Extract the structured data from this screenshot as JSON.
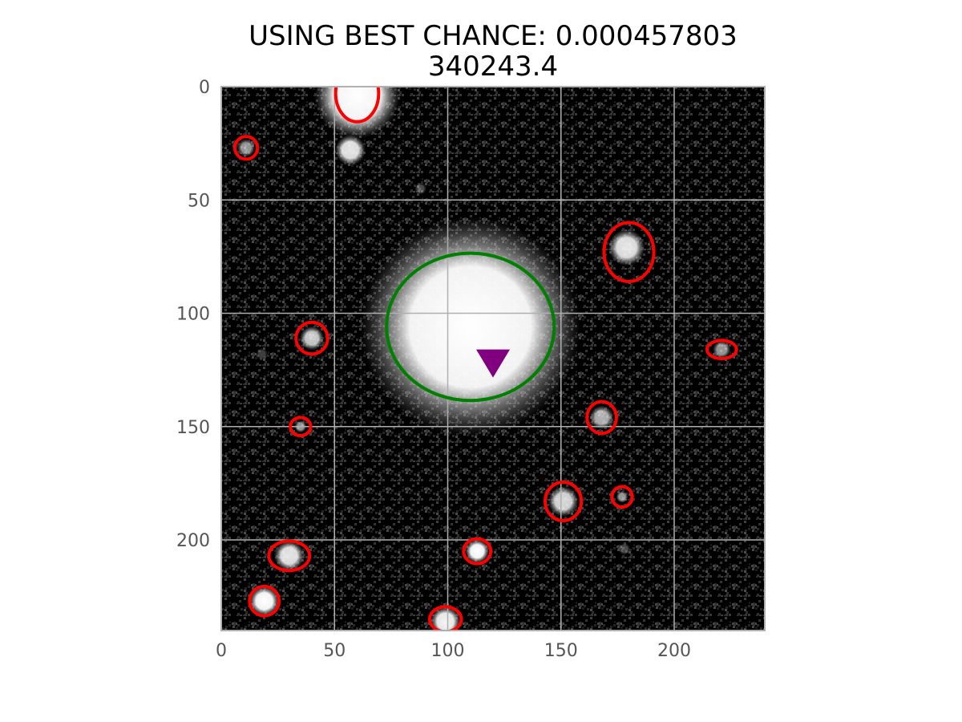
{
  "chart_data": {
    "type": "image",
    "title": "USING BEST CHANCE: 0.000457803",
    "subtitle": "340243.4",
    "xlabel": "",
    "ylabel": "",
    "xlim": [
      0,
      240
    ],
    "ylim": [
      240,
      0
    ],
    "x_ticks": [
      "0",
      "50",
      "100",
      "150",
      "200"
    ],
    "y_ticks": [
      "0",
      "50",
      "100",
      "150",
      "200"
    ],
    "x_tick_values": [
      0,
      50,
      100,
      150,
      200
    ],
    "y_tick_values": [
      0,
      50,
      100,
      150,
      200
    ],
    "grid": true,
    "background_color": "#000000",
    "grid_color": "#b0b0b0",
    "host_ellipse": {
      "x": 110,
      "y": 106,
      "width": 74,
      "height": 65,
      "color": "#008000"
    },
    "marker": {
      "x": 120,
      "y": 122,
      "shape": "triangle-down",
      "color": "#800080"
    },
    "source_ellipses": {
      "color": "#ff0000",
      "items": [
        {
          "x": 60,
          "y": 3,
          "width": 19,
          "height": 25
        },
        {
          "x": 11,
          "y": 27,
          "width": 10,
          "height": 10
        },
        {
          "x": 180,
          "y": 73,
          "width": 22,
          "height": 26
        },
        {
          "x": 40,
          "y": 111,
          "width": 14,
          "height": 14
        },
        {
          "x": 221,
          "y": 116,
          "width": 13,
          "height": 8
        },
        {
          "x": 168,
          "y": 146,
          "width": 13,
          "height": 14
        },
        {
          "x": 35,
          "y": 150,
          "width": 9,
          "height": 8
        },
        {
          "x": 151,
          "y": 183,
          "width": 16,
          "height": 17
        },
        {
          "x": 177,
          "y": 181,
          "width": 9,
          "height": 9
        },
        {
          "x": 30,
          "y": 207,
          "width": 18,
          "height": 13
        },
        {
          "x": 113,
          "y": 205,
          "width": 12,
          "height": 11
        },
        {
          "x": 19,
          "y": 227,
          "width": 13,
          "height": 13
        },
        {
          "x": 99,
          "y": 235,
          "width": 14,
          "height": 11
        }
      ]
    },
    "bright_sources": [
      {
        "x": 110,
        "y": 106,
        "radius": 36,
        "brightness": 1.0
      },
      {
        "x": 60,
        "y": 4,
        "radius": 14,
        "brightness": 1.0
      },
      {
        "x": 57,
        "y": 28,
        "radius": 5,
        "brightness": 0.9
      },
      {
        "x": 11,
        "y": 27,
        "radius": 3,
        "brightness": 0.6
      },
      {
        "x": 179,
        "y": 71,
        "radius": 6,
        "brightness": 0.9
      },
      {
        "x": 40,
        "y": 111,
        "radius": 4,
        "brightness": 0.8
      },
      {
        "x": 221,
        "y": 116,
        "radius": 3,
        "brightness": 0.6
      },
      {
        "x": 168,
        "y": 146,
        "radius": 4,
        "brightness": 0.7
      },
      {
        "x": 35,
        "y": 150,
        "radius": 2,
        "brightness": 0.6
      },
      {
        "x": 151,
        "y": 183,
        "radius": 5,
        "brightness": 0.85
      },
      {
        "x": 177,
        "y": 181,
        "radius": 2,
        "brightness": 0.6
      },
      {
        "x": 30,
        "y": 207,
        "radius": 5,
        "brightness": 0.9
      },
      {
        "x": 113,
        "y": 205,
        "radius": 4,
        "brightness": 1.0
      },
      {
        "x": 19,
        "y": 227,
        "radius": 5,
        "brightness": 1.0
      },
      {
        "x": 99,
        "y": 236,
        "radius": 5,
        "brightness": 0.95
      },
      {
        "x": 88,
        "y": 45,
        "radius": 2,
        "brightness": 0.3
      },
      {
        "x": 178,
        "y": 204,
        "radius": 2,
        "brightness": 0.3
      },
      {
        "x": 18,
        "y": 118,
        "radius": 2,
        "brightness": 0.25
      }
    ]
  }
}
